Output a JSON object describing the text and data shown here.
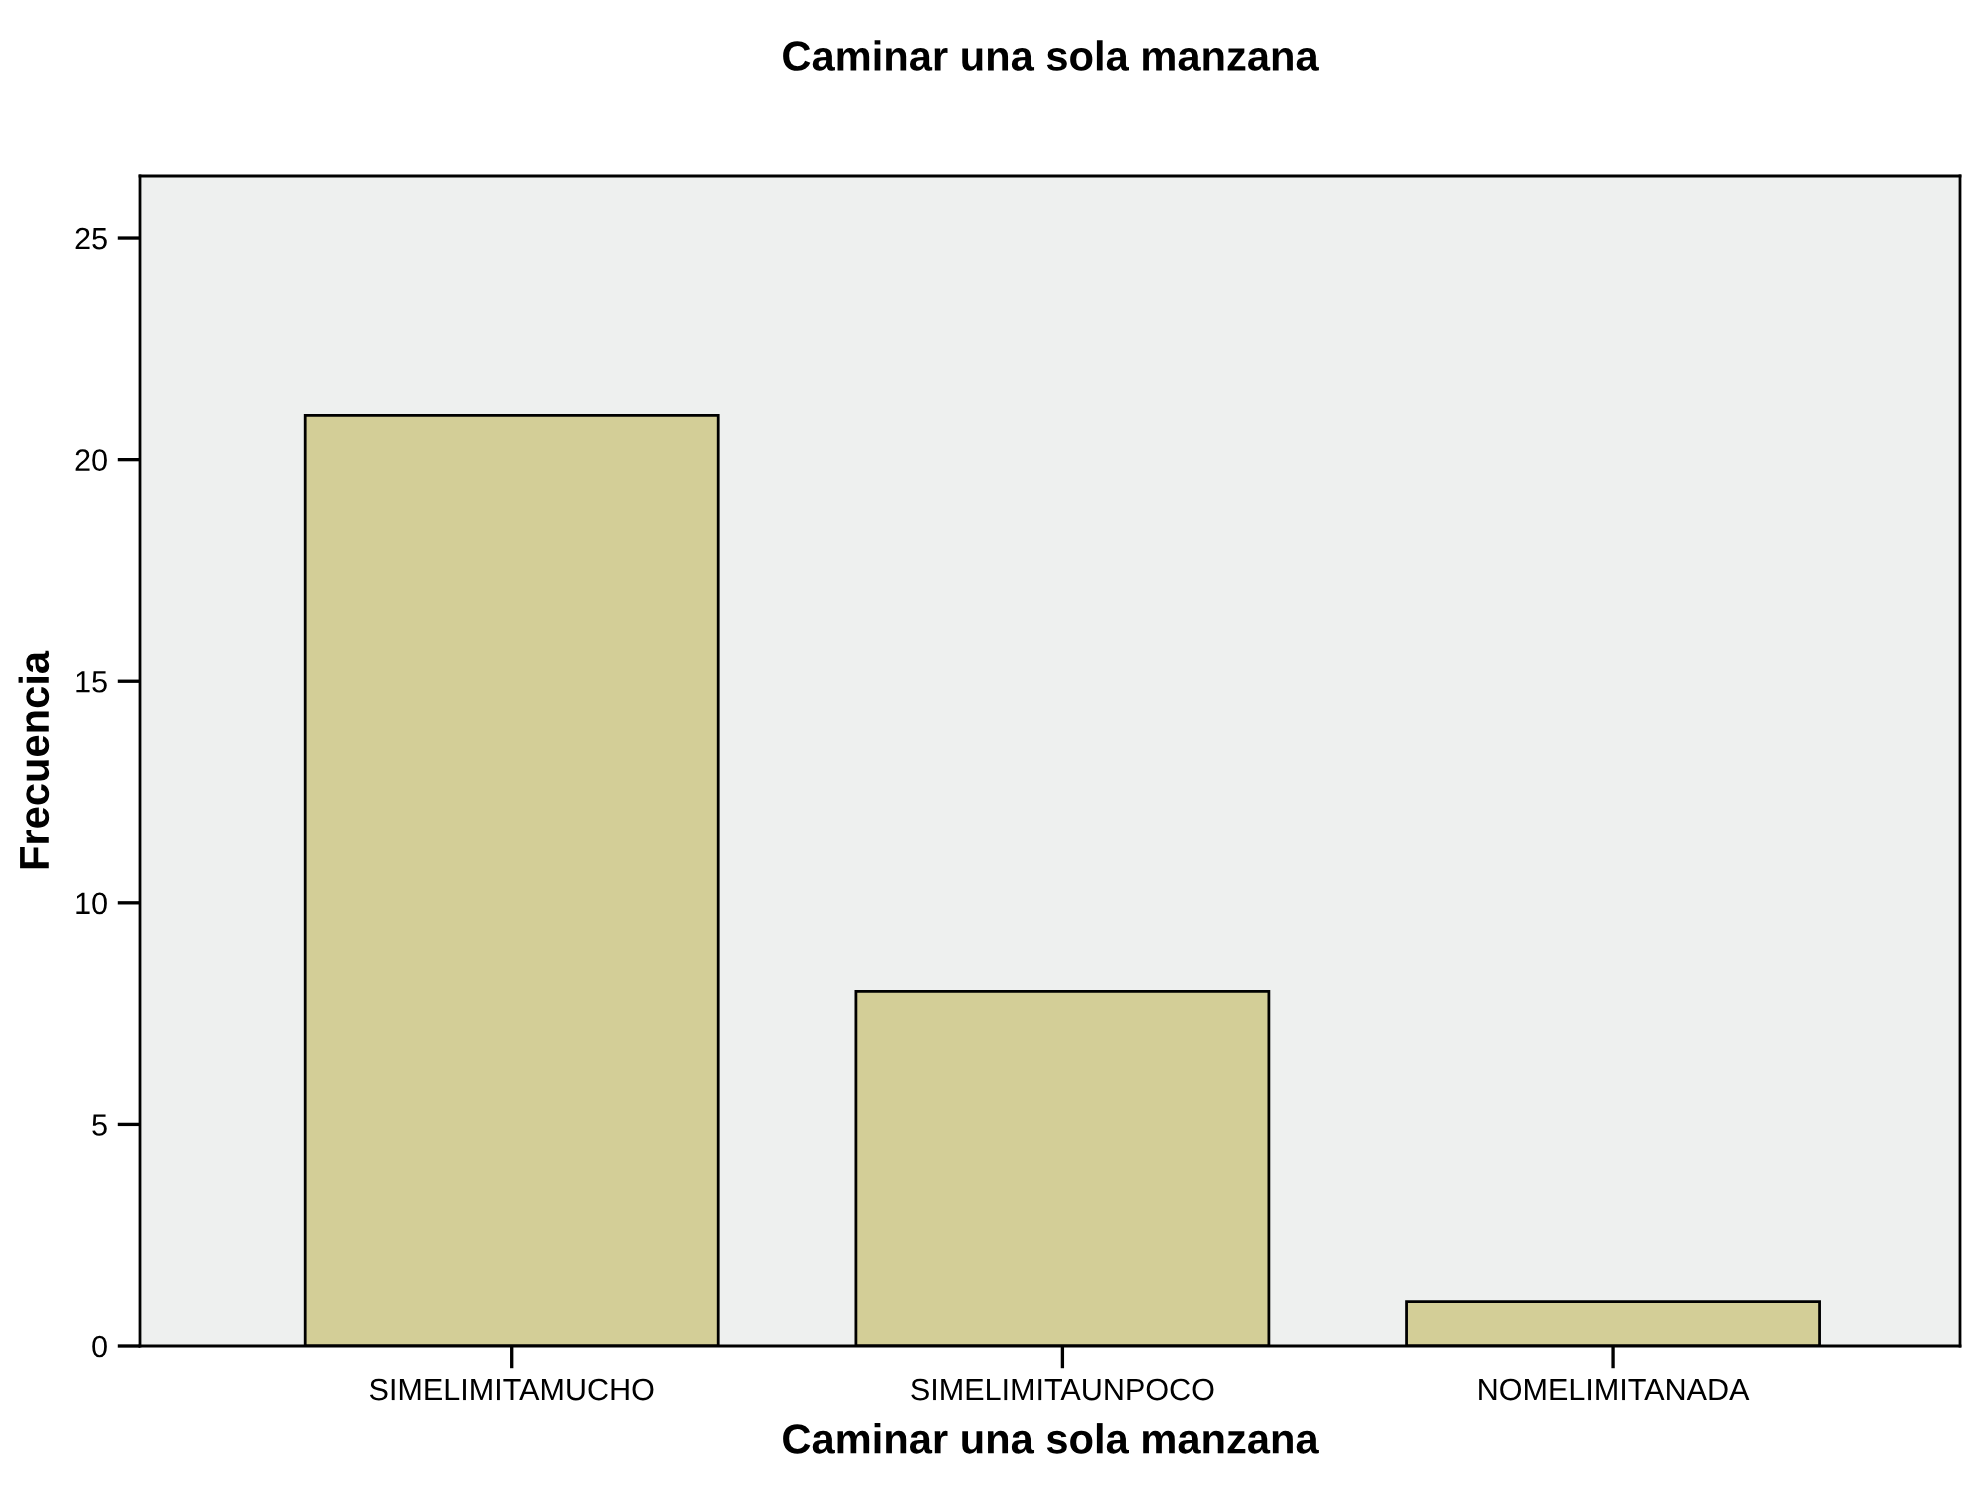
{
  "chart_data": {
    "type": "bar",
    "title": "Caminar una sola manzana",
    "xlabel": "Caminar una sola manzana",
    "ylabel": "Frecuencia",
    "categories": [
      "SIMELIMITAMUCHO",
      "SIMELIMITAUNPOCO",
      "NOMELIMITANADA"
    ],
    "values": [
      21,
      8,
      1
    ],
    "color": "#d3ce97",
    "ylim": [
      0,
      26.4
    ],
    "yticks": [
      0,
      5,
      10,
      15,
      20,
      25
    ],
    "grid": false,
    "legend": false
  }
}
